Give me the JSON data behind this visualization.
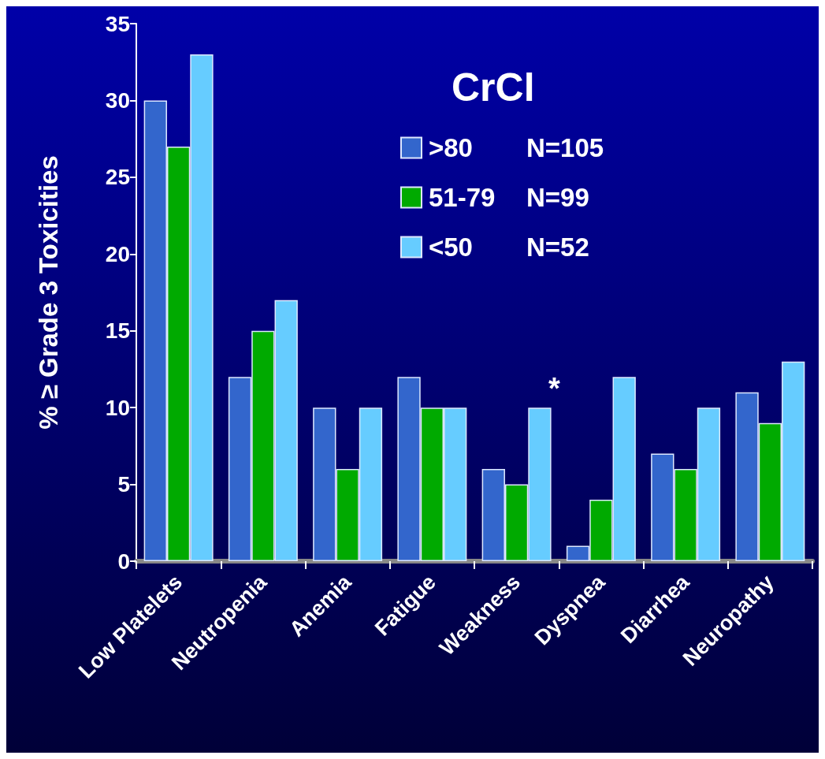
{
  "chart_data": {
    "type": "bar",
    "ylabel": "% ≥ Grade 3 Toxicities",
    "legend_title": "CrCl",
    "categories": [
      "Low Platelets",
      "Neutropenia",
      "Anemia",
      "Fatigue",
      "Weakness",
      "Dyspnea",
      "Diarrhea",
      "Neuropathy"
    ],
    "series": [
      {
        "name": ">80",
        "color": "#3366cc",
        "values": [
          30,
          12,
          10,
          12,
          6,
          1,
          7,
          11
        ]
      },
      {
        "name": "51-79",
        "color": "#00aa00",
        "values": [
          27,
          15,
          6,
          10,
          5,
          4,
          6,
          9
        ]
      },
      {
        "name": "<50",
        "color": "#66ccff",
        "values": [
          33,
          17,
          10,
          10,
          10,
          12,
          10,
          13
        ]
      }
    ],
    "ylim": [
      0,
      35
    ],
    "yticks": [
      0,
      5,
      10,
      15,
      20,
      25,
      30,
      35
    ],
    "grid": false,
    "legend": "top right",
    "annotations": [
      "*",
      "N=105",
      "N=99",
      "N=52"
    ]
  }
}
